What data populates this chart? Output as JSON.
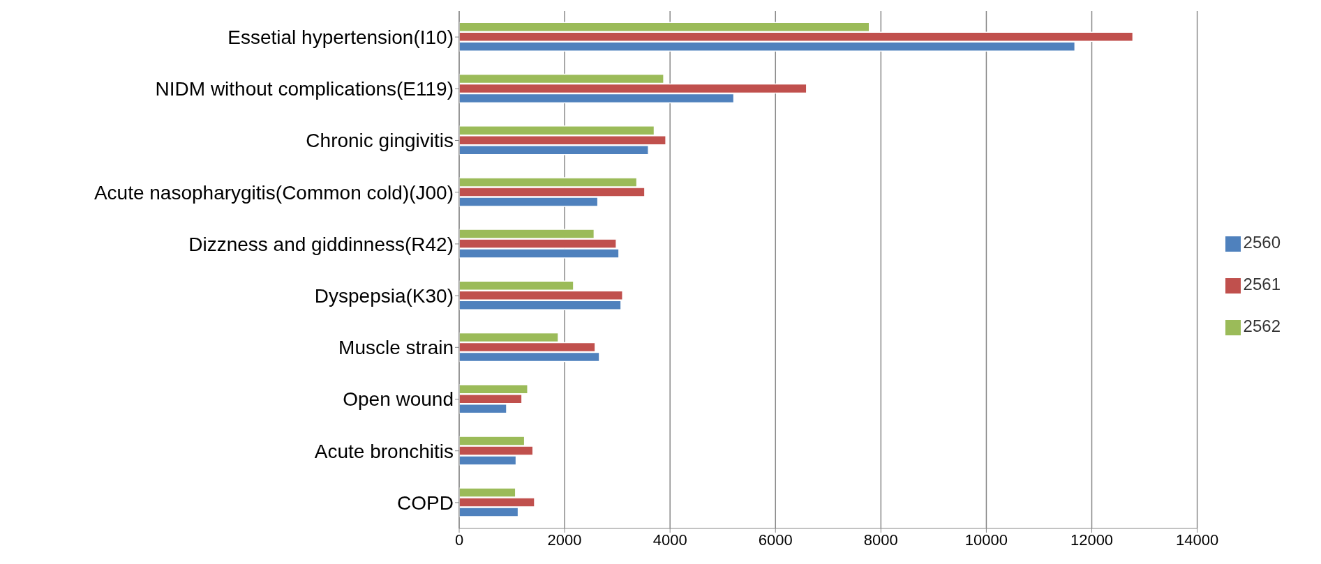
{
  "chart_data": {
    "type": "bar",
    "orientation": "horizontal",
    "categories": [
      "Essetial hypertension(I10)",
      "NIDM without complications(E119)",
      "Chronic gingivitis",
      "Acute nasopharygitis(Common cold)(J00)",
      "Dizzness and giddinness(R42)",
      "Dyspepsia(K30)",
      "Muscle strain",
      "Open wound",
      "Acute bronchitis",
      "COPD"
    ],
    "series": [
      {
        "name": "2562",
        "color": "#9bbb59",
        "values": [
          7780,
          3880,
          3700,
          3370,
          2560,
          2170,
          1880,
          1300,
          1240,
          1070
        ]
      },
      {
        "name": "2561",
        "color": "#c0504d",
        "values": [
          12780,
          6590,
          3920,
          3520,
          2980,
          3100,
          2580,
          1190,
          1400,
          1430
        ]
      },
      {
        "name": "2560",
        "color": "#4f81bd",
        "values": [
          11680,
          5210,
          3590,
          2630,
          3030,
          3070,
          2660,
          900,
          1080,
          1120
        ]
      }
    ],
    "xlim": [
      0,
      14000
    ],
    "xticks": [
      0,
      2000,
      4000,
      6000,
      8000,
      10000,
      12000,
      14000
    ],
    "grid": "x",
    "legend": "right"
  }
}
